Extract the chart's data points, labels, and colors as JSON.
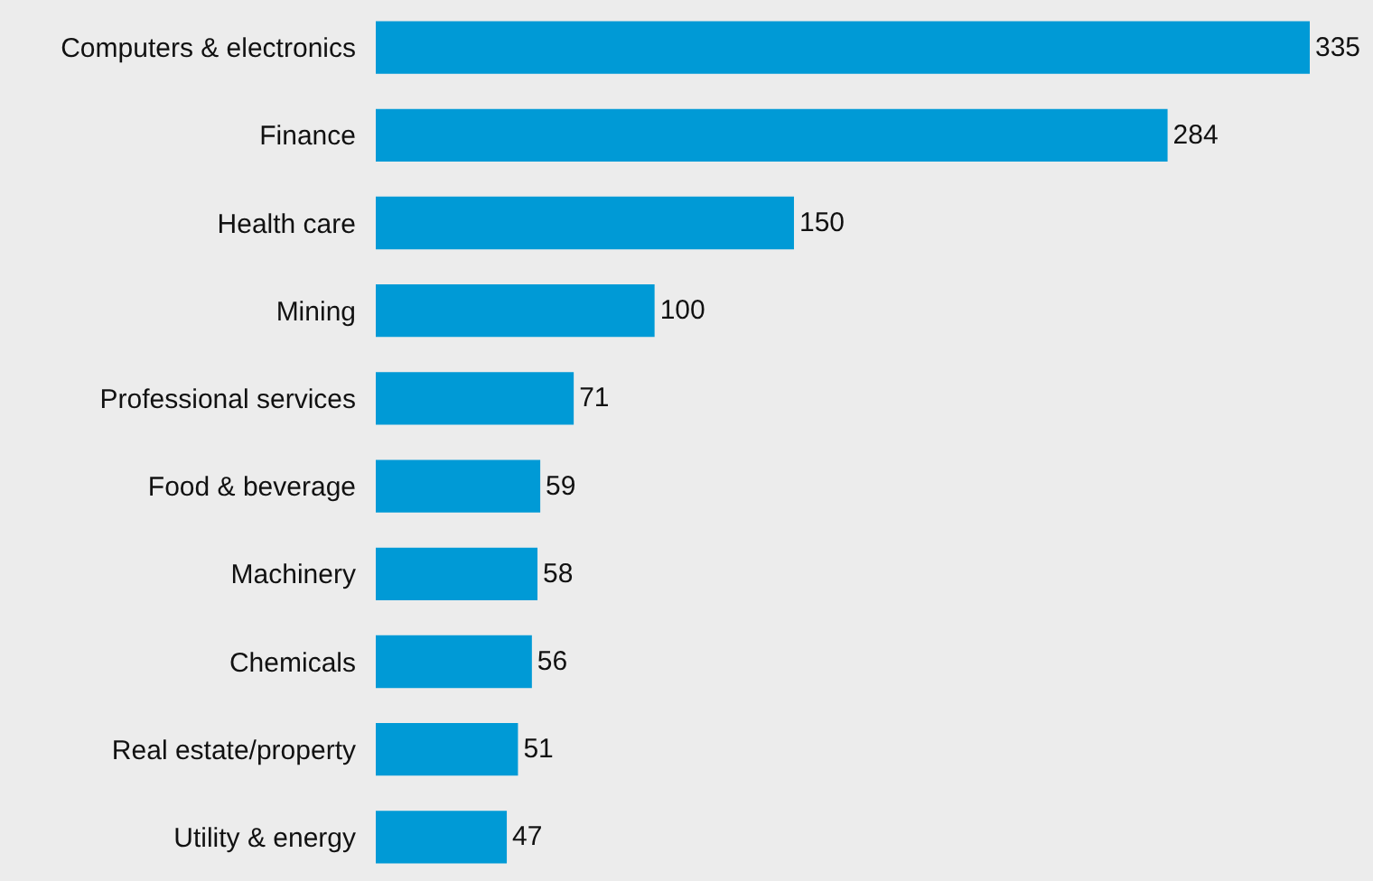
{
  "chart_data": {
    "type": "bar",
    "orientation": "horizontal",
    "categories": [
      "Computers & electronics",
      "Finance",
      "Health care",
      "Mining",
      "Professional services",
      "Food & beverage",
      "Machinery",
      "Chemicals",
      "Real estate/property",
      "Utility & energy"
    ],
    "values": [
      335,
      284,
      150,
      100,
      71,
      59,
      58,
      56,
      51,
      47
    ],
    "color": "#009ad6",
    "data_labels": true
  }
}
